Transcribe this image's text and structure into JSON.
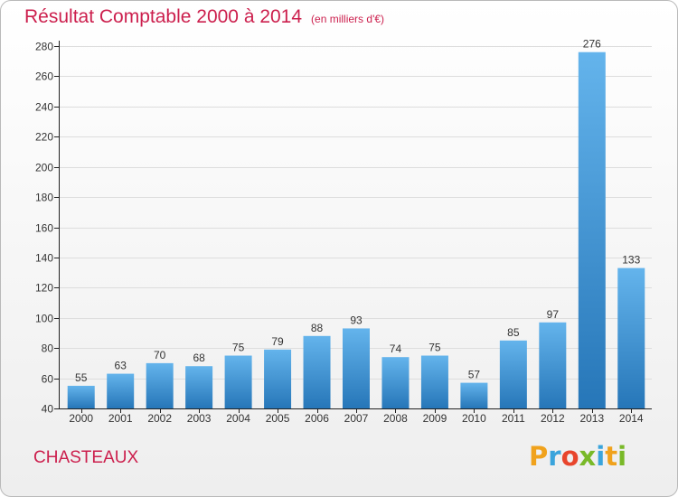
{
  "title": {
    "main": "Résultat Comptable 2000 à 2014",
    "unit": "(en milliers d'€)"
  },
  "place": "CHASTEAUX",
  "logo": {
    "letters": [
      "P",
      "r",
      "o",
      "x",
      "i",
      "t",
      "i"
    ],
    "colors": [
      "#f0a21c",
      "#3aa4dc",
      "#e8452c",
      "#79b928",
      "#3aa4dc",
      "#f0a21c",
      "#79b928"
    ]
  },
  "colors": {
    "bar_light": "#64b4ec",
    "bar_dark": "#2676b8"
  },
  "chart_data": {
    "type": "bar",
    "title": "Résultat Comptable 2000 à 2014",
    "xlabel": "",
    "ylabel": "",
    "ylim": [
      40,
      280
    ],
    "yticks": [
      40,
      60,
      80,
      100,
      120,
      140,
      160,
      180,
      200,
      220,
      240,
      260,
      280
    ],
    "categories": [
      "2000",
      "2001",
      "2002",
      "2003",
      "2004",
      "2005",
      "2006",
      "2007",
      "2008",
      "2009",
      "2010",
      "2011",
      "2012",
      "2013",
      "2014"
    ],
    "values": [
      55,
      63,
      70,
      68,
      75,
      79,
      88,
      93,
      74,
      75,
      57,
      85,
      97,
      276,
      133
    ],
    "grid": true
  }
}
